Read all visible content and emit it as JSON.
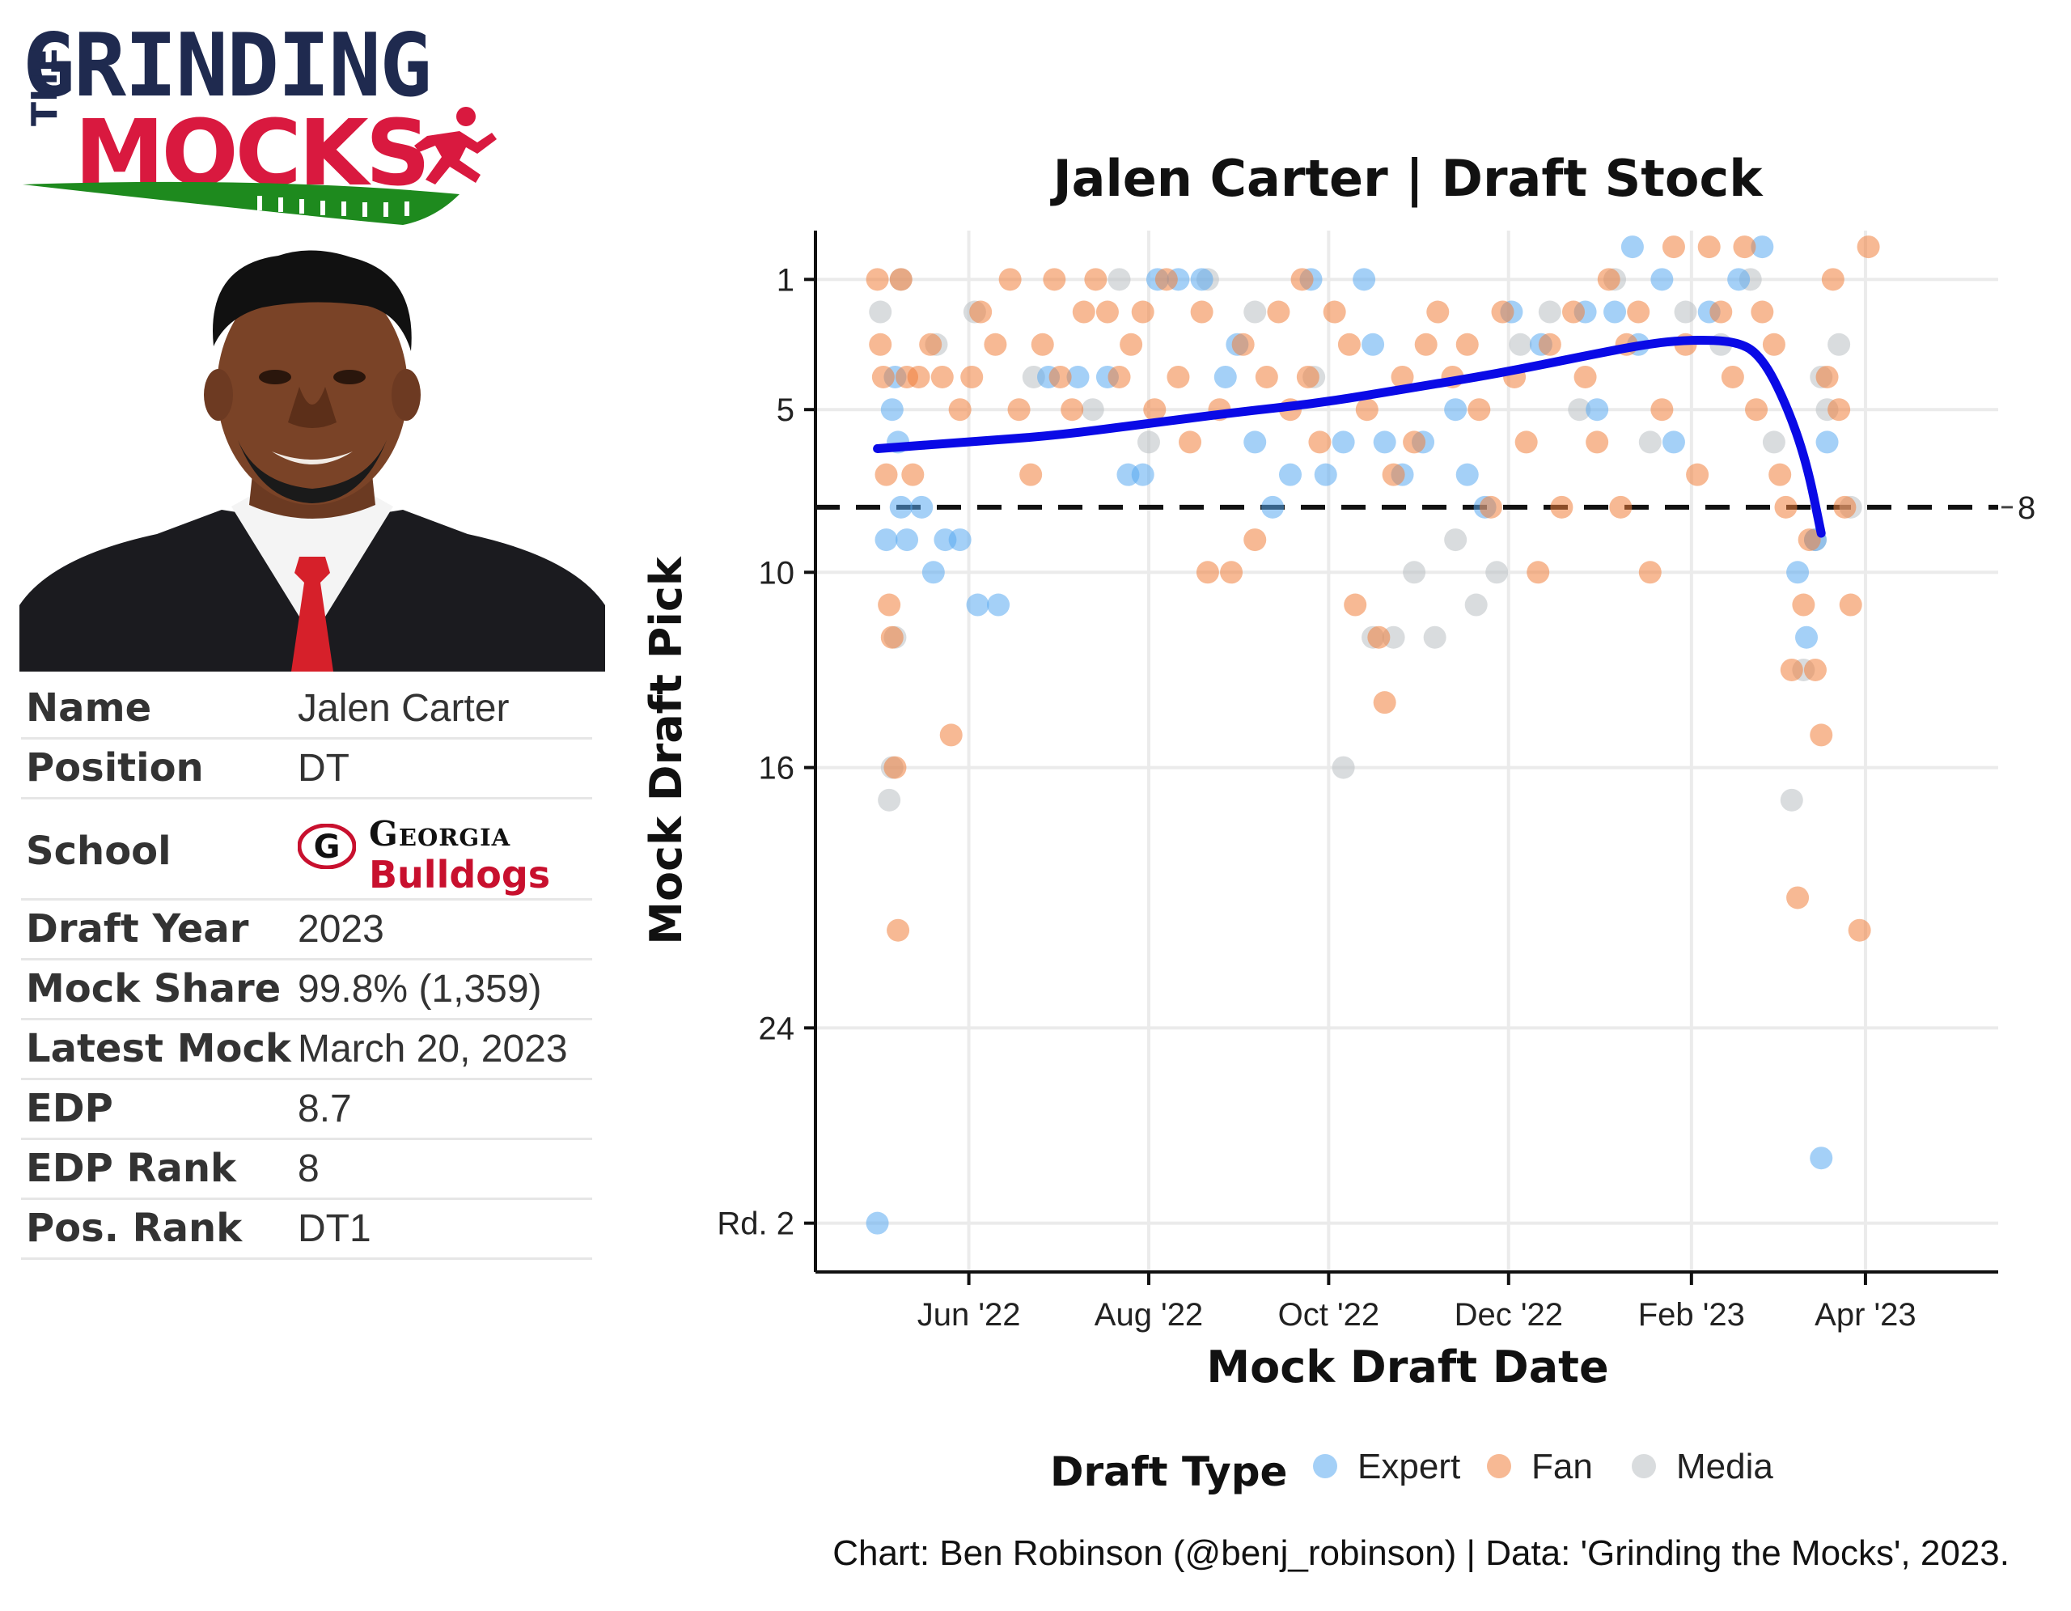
{
  "logo": {
    "line1": "GRINDING",
    "line2_small": "THE",
    "line2": "MOCKS",
    "colors": {
      "navy": "#1f2a4f",
      "red": "#d9193f",
      "green": "#1e8a1e"
    }
  },
  "player_card": {
    "rows": [
      {
        "label": "Name",
        "value": "Jalen Carter"
      },
      {
        "label": "Position",
        "value": "DT"
      },
      {
        "label": "School",
        "value": ""
      },
      {
        "label": "Draft Year",
        "value": "2023"
      },
      {
        "label": "Mock Share",
        "value": "99.8% (1,359)"
      },
      {
        "label": "Latest Mock",
        "value": "March 20, 2023"
      },
      {
        "label": "EDP",
        "value": "8.7"
      },
      {
        "label": "EDP Rank",
        "value": "8"
      },
      {
        "label": "Pos. Rank",
        "value": "DT1"
      }
    ],
    "school": {
      "line1": "Georgia",
      "line2": "Bulldogs",
      "logo_letter": "G",
      "color": "#c8102e"
    }
  },
  "chart_data": {
    "type": "scatter",
    "title": "Jalen Carter | Draft Stock",
    "xlabel": "Mock Draft Date",
    "ylabel": "Mock Draft Pick",
    "x_ticks": [
      "Jun '22",
      "Aug '22",
      "Oct '22",
      "Dec '22",
      "Feb '23",
      "Apr '23"
    ],
    "x_tick_days": [
      31,
      92,
      153,
      214,
      276,
      335
    ],
    "xlim_days": [
      -21,
      380
    ],
    "x_origin": "2022-05-01",
    "y_ticks": [
      {
        "label": "1",
        "value": 1
      },
      {
        "label": "5",
        "value": 5
      },
      {
        "label": "10",
        "value": 10
      },
      {
        "label": "16",
        "value": 16
      },
      {
        "label": "24",
        "value": 24
      },
      {
        "label": "Rd. 2",
        "value": 30
      }
    ],
    "ylim": [
      -0.5,
      31.5
    ],
    "reference_line": {
      "value": 8,
      "label": "8",
      "style": "dashed"
    },
    "grid": true,
    "legend": {
      "title": "Draft Type",
      "position": "bottom",
      "entries": [
        {
          "name": "Expert",
          "color": "#5aaaf0"
        },
        {
          "name": "Fan",
          "color": "#f07f3c"
        },
        {
          "name": "Media",
          "color": "#b9bfc3"
        }
      ]
    },
    "series_colors": {
      "Expert": "#5aaaf0",
      "Fan": "#f07f3c",
      "Media": "#b9bfc3"
    },
    "trend": {
      "color": "#0a0ae6",
      "points": [
        [
          0,
          6.2
        ],
        [
          30,
          6.0
        ],
        [
          60,
          5.8
        ],
        [
          90,
          5.45
        ],
        [
          120,
          5.1
        ],
        [
          150,
          4.8
        ],
        [
          180,
          4.35
        ],
        [
          210,
          3.9
        ],
        [
          240,
          3.35
        ],
        [
          260,
          3.0
        ],
        [
          275,
          2.85
        ],
        [
          292,
          2.9
        ],
        [
          300,
          3.4
        ],
        [
          308,
          4.8
        ],
        [
          315,
          6.6
        ],
        [
          320,
          8.8
        ]
      ]
    },
    "points_by_type": {
      "Expert": [
        [
          0,
          30
        ],
        [
          3,
          9
        ],
        [
          5,
          5
        ],
        [
          6,
          4
        ],
        [
          7,
          6
        ],
        [
          8,
          8
        ],
        [
          10,
          9
        ],
        [
          15,
          8
        ],
        [
          19,
          10
        ],
        [
          23,
          9
        ],
        [
          28,
          9
        ],
        [
          34,
          11
        ],
        [
          41,
          11
        ],
        [
          58,
          4
        ],
        [
          68,
          4
        ],
        [
          78,
          4
        ],
        [
          85,
          7
        ],
        [
          90,
          7
        ],
        [
          95,
          1
        ],
        [
          102,
          1
        ],
        [
          110,
          1
        ],
        [
          118,
          4
        ],
        [
          122,
          3
        ],
        [
          128,
          6
        ],
        [
          134,
          8
        ],
        [
          140,
          7
        ],
        [
          147,
          1
        ],
        [
          152,
          7
        ],
        [
          158,
          6
        ],
        [
          165,
          1
        ],
        [
          168,
          3
        ],
        [
          172,
          6
        ],
        [
          178,
          7
        ],
        [
          185,
          6
        ],
        [
          196,
          5
        ],
        [
          200,
          7
        ],
        [
          206,
          8
        ],
        [
          215,
          2
        ],
        [
          225,
          3
        ],
        [
          240,
          2
        ],
        [
          250,
          2
        ],
        [
          256,
          0
        ],
        [
          266,
          1
        ],
        [
          270,
          6
        ],
        [
          282,
          2
        ],
        [
          292,
          1
        ],
        [
          300,
          0
        ],
        [
          312,
          10
        ],
        [
          315,
          12
        ],
        [
          320,
          28
        ],
        [
          322,
          6
        ],
        [
          318,
          9
        ],
        [
          258,
          3
        ],
        [
          244,
          5
        ]
      ],
      "Fan": [
        [
          0,
          1
        ],
        [
          1,
          3
        ],
        [
          2,
          4
        ],
        [
          3,
          7
        ],
        [
          4,
          11
        ],
        [
          5,
          12
        ],
        [
          6,
          16
        ],
        [
          7,
          21
        ],
        [
          8,
          1
        ],
        [
          10,
          4
        ],
        [
          12,
          7
        ],
        [
          14,
          4
        ],
        [
          18,
          3
        ],
        [
          22,
          4
        ],
        [
          25,
          15
        ],
        [
          28,
          5
        ],
        [
          32,
          4
        ],
        [
          35,
          2
        ],
        [
          40,
          3
        ],
        [
          45,
          1
        ],
        [
          48,
          5
        ],
        [
          52,
          7
        ],
        [
          56,
          3
        ],
        [
          60,
          1
        ],
        [
          62,
          4
        ],
        [
          66,
          5
        ],
        [
          70,
          2
        ],
        [
          74,
          1
        ],
        [
          78,
          2
        ],
        [
          82,
          4
        ],
        [
          86,
          3
        ],
        [
          90,
          2
        ],
        [
          94,
          5
        ],
        [
          98,
          1
        ],
        [
          102,
          4
        ],
        [
          106,
          6
        ],
        [
          110,
          2
        ],
        [
          112,
          10
        ],
        [
          116,
          5
        ],
        [
          120,
          10
        ],
        [
          124,
          3
        ],
        [
          128,
          9
        ],
        [
          132,
          4
        ],
        [
          136,
          2
        ],
        [
          140,
          5
        ],
        [
          144,
          1
        ],
        [
          146,
          4
        ],
        [
          150,
          6
        ],
        [
          155,
          2
        ],
        [
          160,
          3
        ],
        [
          162,
          11
        ],
        [
          166,
          5
        ],
        [
          170,
          12
        ],
        [
          172,
          14
        ],
        [
          175,
          7
        ],
        [
          178,
          4
        ],
        [
          182,
          6
        ],
        [
          186,
          3
        ],
        [
          190,
          2
        ],
        [
          195,
          4
        ],
        [
          200,
          3
        ],
        [
          204,
          5
        ],
        [
          208,
          8
        ],
        [
          212,
          2
        ],
        [
          216,
          4
        ],
        [
          220,
          6
        ],
        [
          224,
          10
        ],
        [
          228,
          3
        ],
        [
          232,
          8
        ],
        [
          236,
          2
        ],
        [
          240,
          4
        ],
        [
          244,
          6
        ],
        [
          248,
          1
        ],
        [
          252,
          8
        ],
        [
          254,
          3
        ],
        [
          258,
          2
        ],
        [
          262,
          10
        ],
        [
          266,
          5
        ],
        [
          270,
          0
        ],
        [
          274,
          3
        ],
        [
          278,
          7
        ],
        [
          282,
          0
        ],
        [
          286,
          2
        ],
        [
          290,
          4
        ],
        [
          294,
          0
        ],
        [
          298,
          5
        ],
        [
          300,
          2
        ],
        [
          304,
          3
        ],
        [
          306,
          7
        ],
        [
          308,
          8
        ],
        [
          310,
          13
        ],
        [
          312,
          20
        ],
        [
          314,
          11
        ],
        [
          316,
          9
        ],
        [
          318,
          13
        ],
        [
          320,
          15
        ],
        [
          322,
          4
        ],
        [
          324,
          1
        ],
        [
          326,
          5
        ],
        [
          328,
          8
        ],
        [
          330,
          11
        ],
        [
          333,
          21
        ],
        [
          336,
          0
        ]
      ],
      "Media": [
        [
          1,
          2
        ],
        [
          4,
          17
        ],
        [
          5,
          16
        ],
        [
          6,
          12
        ],
        [
          8,
          1
        ],
        [
          20,
          3
        ],
        [
          33,
          2
        ],
        [
          53,
          4
        ],
        [
          73,
          5
        ],
        [
          82,
          1
        ],
        [
          92,
          6
        ],
        [
          112,
          1
        ],
        [
          128,
          2
        ],
        [
          148,
          4
        ],
        [
          158,
          16
        ],
        [
          168,
          12
        ],
        [
          175,
          12
        ],
        [
          182,
          10
        ],
        [
          189,
          12
        ],
        [
          196,
          9
        ],
        [
          203,
          11
        ],
        [
          210,
          10
        ],
        [
          218,
          3
        ],
        [
          228,
          2
        ],
        [
          238,
          5
        ],
        [
          250,
          1
        ],
        [
          262,
          6
        ],
        [
          274,
          2
        ],
        [
          286,
          3
        ],
        [
          296,
          1
        ],
        [
          304,
          6
        ],
        [
          310,
          17
        ],
        [
          314,
          13
        ],
        [
          318,
          9
        ],
        [
          320,
          4
        ],
        [
          322,
          5
        ],
        [
          326,
          3
        ],
        [
          330,
          8
        ]
      ]
    }
  },
  "caption": "Chart: Ben Robinson (@benj_robinson) | Data: 'Grinding the Mocks', 2023."
}
